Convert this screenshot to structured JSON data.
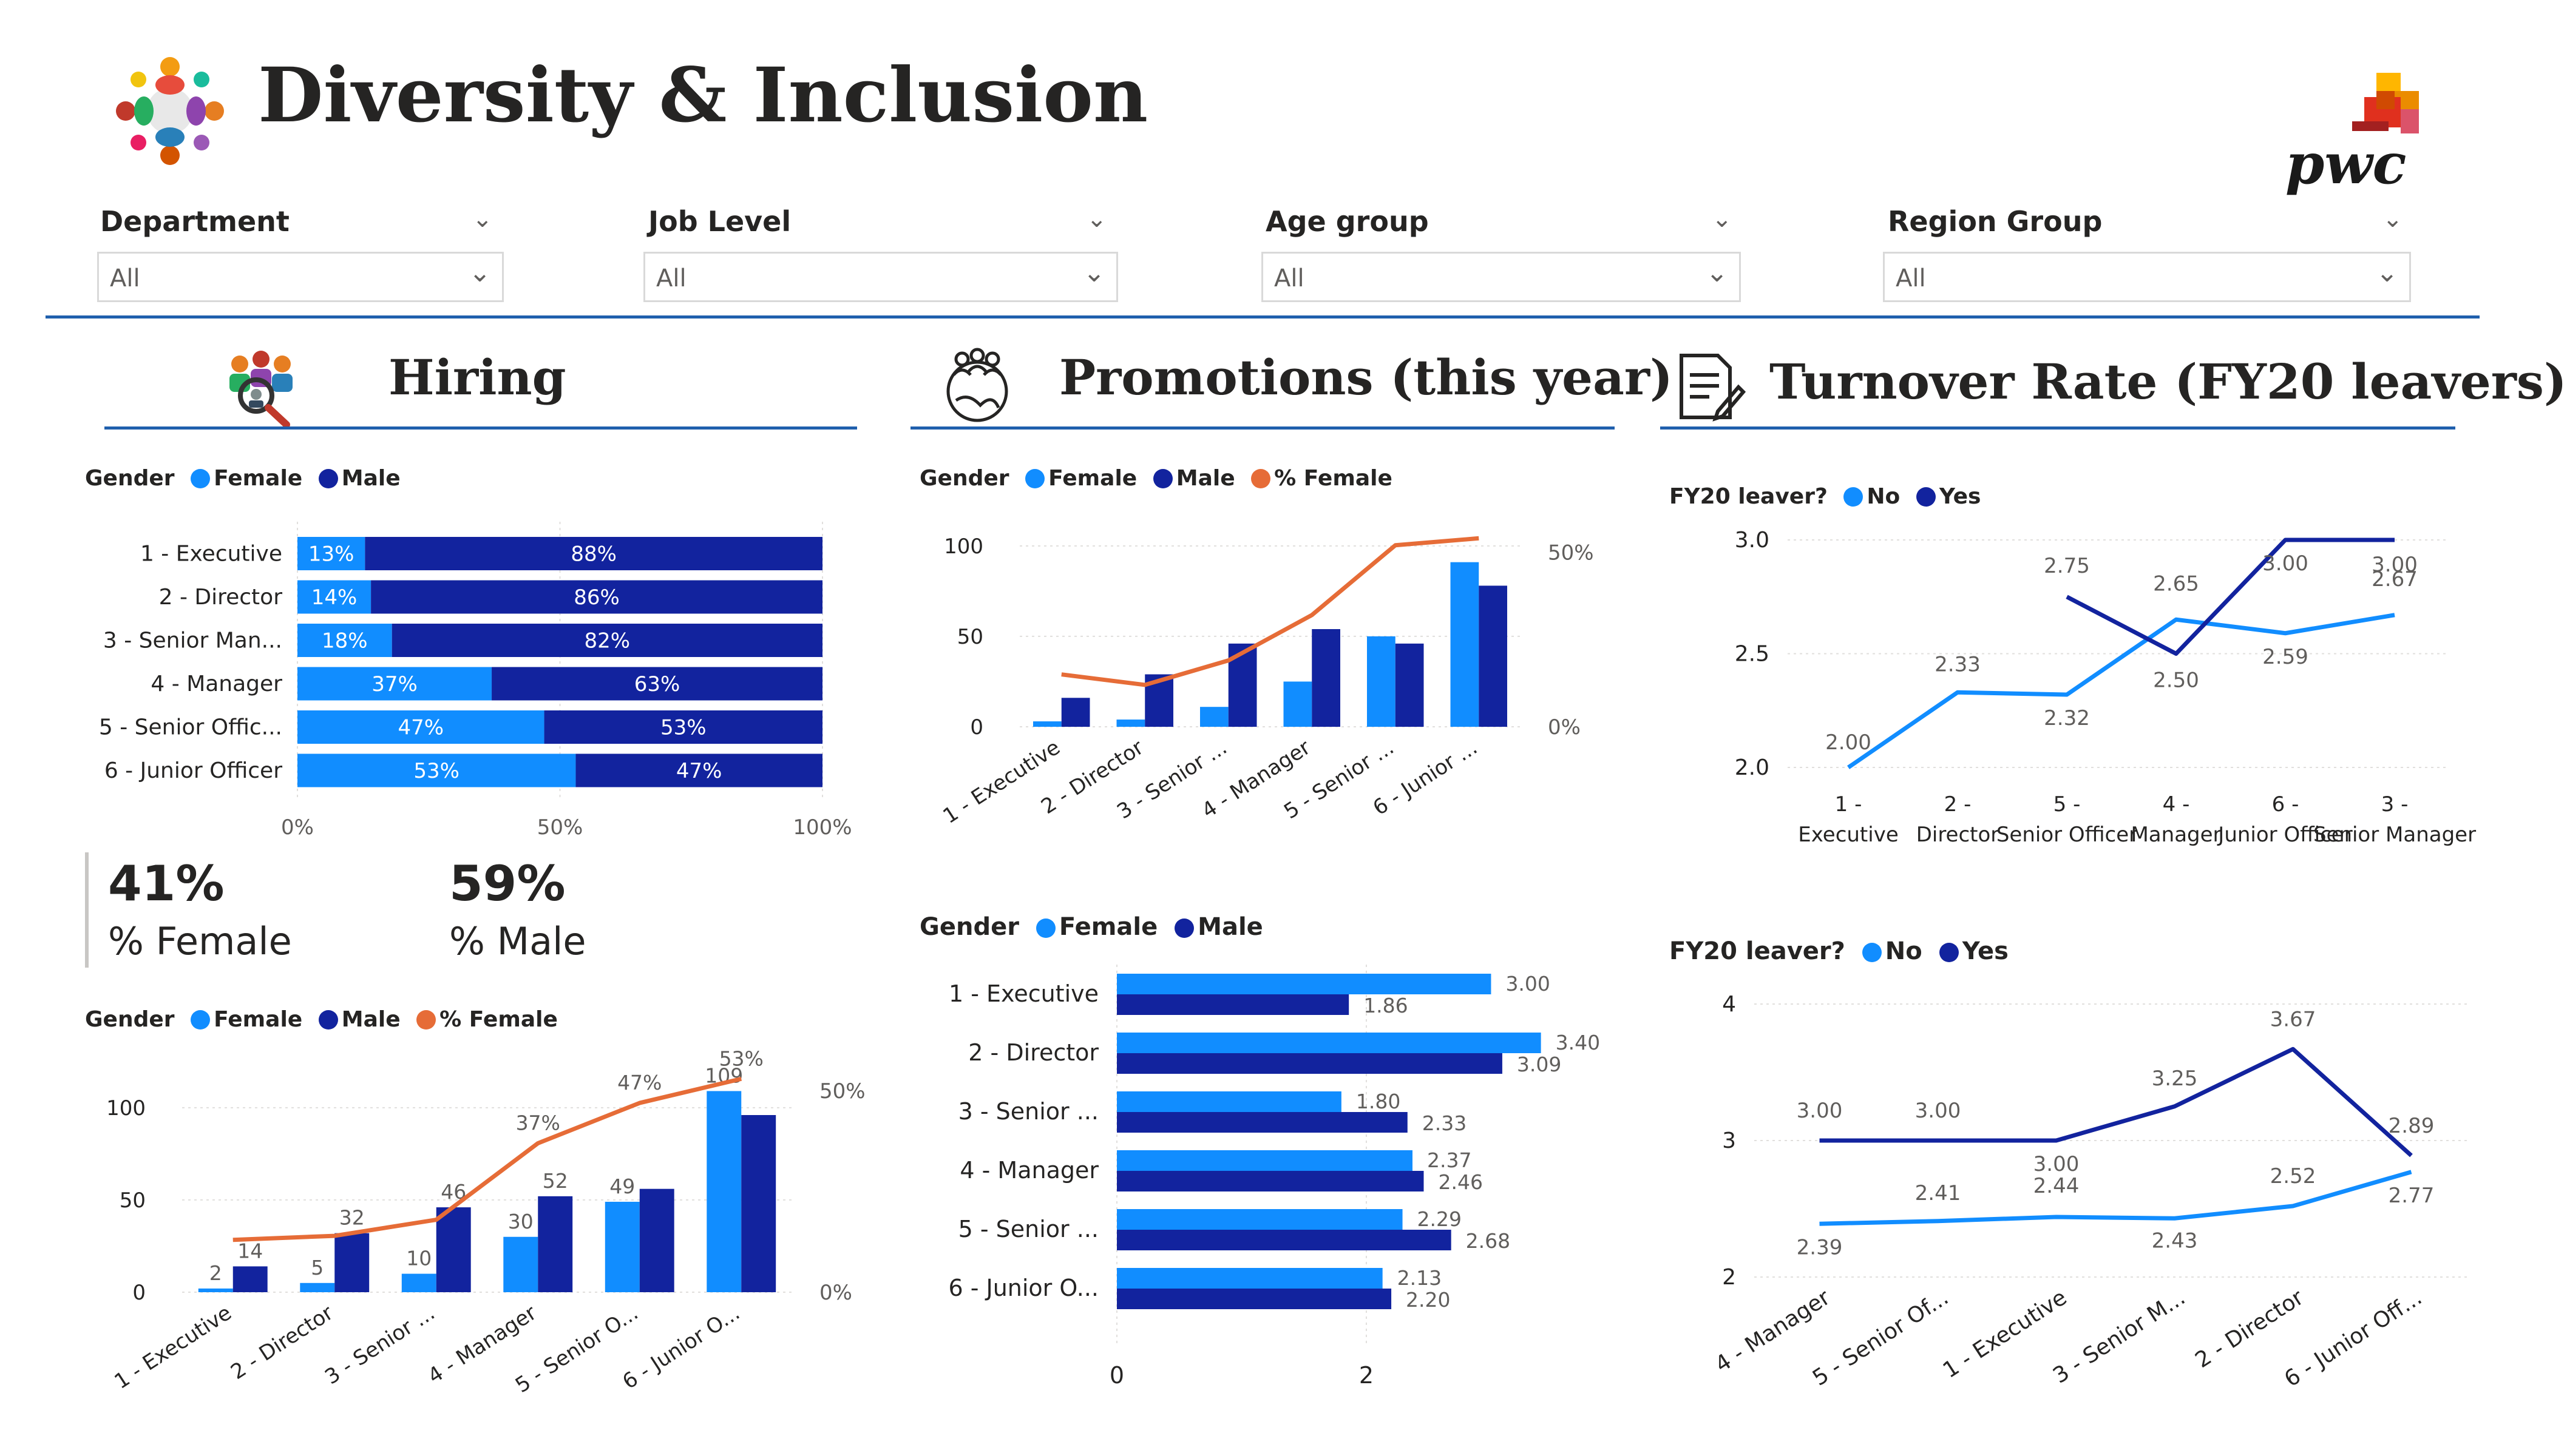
{
  "header": {
    "title": "Diversity & Inclusion",
    "brand": "pwc"
  },
  "colors": {
    "female": "#118dff",
    "male": "#12239e",
    "pct_female": "#e66c37",
    "no": "#118dff",
    "yes": "#12239e",
    "divider": "#1f5fad"
  },
  "slicers": [
    {
      "label": "Department",
      "value": "All"
    },
    {
      "label": "Job Level",
      "value": "All"
    },
    {
      "label": "Age group",
      "value": "All"
    },
    {
      "label": "Region Group",
      "value": "All"
    }
  ],
  "sections": {
    "hiring": "Hiring",
    "promotions": "Promotions (this year)",
    "turnover": "Turnover Rate (FY20 leavers)"
  },
  "legends": {
    "gender_fm": {
      "title": "Gender",
      "items": [
        "Female",
        "Male"
      ]
    },
    "gender_fm_pct": {
      "title": "Gender",
      "items": [
        "Female",
        "Male",
        "% Female"
      ]
    },
    "leaver": {
      "title": "FY20 leaver?",
      "items": [
        "No",
        "Yes"
      ]
    }
  },
  "kpis": {
    "female_value": "41%",
    "female_label": "% Female",
    "male_value": "59%",
    "male_label": "% Male"
  },
  "chart_data": [
    {
      "id": "hiring_stacked",
      "type": "bar",
      "orientation": "horizontal-100%-stacked",
      "categories": [
        "1 - Executive",
        "2 - Director",
        "3 - Senior Man...",
        "4 - Manager",
        "5 - Senior Offic...",
        "6 - Junior Officer"
      ],
      "series": [
        {
          "name": "Female",
          "values": [
            13,
            14,
            18,
            37,
            47,
            53
          ],
          "labels": [
            "13%",
            "14%",
            "18%",
            "37%",
            "47%",
            "53%"
          ]
        },
        {
          "name": "Male",
          "values": [
            88,
            86,
            82,
            63,
            53,
            47
          ],
          "labels": [
            "88%",
            "86%",
            "82%",
            "63%",
            "53%",
            "47%"
          ]
        }
      ],
      "xticks": [
        "0%",
        "50%",
        "100%"
      ]
    },
    {
      "id": "hiring_combo",
      "type": "bar",
      "categories": [
        "1 - Executive",
        "2 - Director",
        "3 - Senior ...",
        "4 - Manager",
        "5 - Senior O...",
        "6 - Junior O..."
      ],
      "series": [
        {
          "name": "Female",
          "values": [
            2,
            5,
            10,
            30,
            49,
            109
          ],
          "labels": [
            "2",
            "5",
            "10",
            "30",
            "49",
            "109"
          ]
        },
        {
          "name": "Male",
          "values": [
            14,
            32,
            46,
            52,
            56,
            96
          ],
          "labels": [
            "14",
            "32",
            "46",
            "52",
            "",
            ""
          ]
        },
        {
          "name": "% Female",
          "values": [
            13,
            14,
            18,
            37,
            47,
            53
          ],
          "axis": "right",
          "labels": [
            "",
            "",
            "",
            "37%",
            "47%",
            "53%"
          ]
        }
      ],
      "yticks": [
        "0",
        "50",
        "100"
      ],
      "ylim": [
        0,
        120
      ],
      "y2ticks": [
        "0%",
        "50%"
      ],
      "y2lim": [
        0,
        55
      ]
    },
    {
      "id": "promotions_combo",
      "type": "bar",
      "categories": [
        "1 - Executive",
        "2 - Director",
        "3 - Senior ...",
        "4 - Manager",
        "5 - Senior ...",
        "6 - Junior ..."
      ],
      "series": [
        {
          "name": "Female",
          "values": [
            3,
            4,
            11,
            25,
            50,
            91
          ]
        },
        {
          "name": "Male",
          "values": [
            16,
            29,
            46,
            54,
            46,
            78
          ]
        },
        {
          "name": "% Female",
          "values": [
            15,
            12,
            19,
            32,
            52,
            54
          ],
          "axis": "right"
        }
      ],
      "yticks": [
        "0",
        "50",
        "100"
      ],
      "ylim": [
        0,
        110
      ],
      "y2ticks": [
        "0%",
        "50%"
      ],
      "y2lim": [
        0,
        57
      ]
    },
    {
      "id": "promotions_hbar",
      "type": "bar",
      "orientation": "horizontal-clustered",
      "categories": [
        "1 - Executive",
        "2 - Director",
        "3 - Senior ...",
        "4 - Manager",
        "5 - Senior ...",
        "6 - Junior O..."
      ],
      "series": [
        {
          "name": "Female",
          "values": [
            3.0,
            3.4,
            1.8,
            2.37,
            2.29,
            2.13
          ],
          "labels": [
            "3.00",
            "3.40",
            "1.80",
            "2.37",
            "2.29",
            "2.13"
          ]
        },
        {
          "name": "Male",
          "values": [
            1.86,
            3.09,
            2.33,
            2.46,
            2.68,
            2.2
          ],
          "labels": [
            "1.86",
            "3.09",
            "2.33",
            "2.46",
            "2.68",
            "2.20"
          ]
        }
      ],
      "xticks": [
        "0",
        "2"
      ],
      "xlim": [
        0,
        3.65
      ]
    },
    {
      "id": "turnover_line_1",
      "type": "line",
      "categories": [
        "1 - Executive",
        "2 - Director",
        "5 - Senior Officer",
        "4 - Manager",
        "6 - Junior Officer",
        "3 - Senior Manager"
      ],
      "series": [
        {
          "name": "No",
          "values": [
            2.0,
            2.33,
            2.32,
            2.65,
            2.59,
            2.67
          ],
          "labels": [
            "2.00",
            "2.33",
            "2.32",
            "2.65",
            "2.59",
            "2.67"
          ]
        },
        {
          "name": "Yes",
          "values": [
            null,
            null,
            2.75,
            2.5,
            3.0,
            3.0
          ],
          "labels": [
            "",
            "",
            "2.75",
            "2.50",
            "3.00",
            "3.00"
          ]
        }
      ],
      "yticks": [
        "2.0",
        "2.5",
        "3.0"
      ],
      "ylim": [
        2.0,
        3.0
      ]
    },
    {
      "id": "turnover_line_2",
      "type": "line",
      "categories": [
        "4 - Manager",
        "5 - Senior Of...",
        "1 - Executive",
        "3 - Senior M...",
        "2 - Director",
        "6 - Junior Off..."
      ],
      "series": [
        {
          "name": "No",
          "values": [
            2.39,
            2.41,
            2.44,
            2.43,
            2.52,
            2.77
          ],
          "labels": [
            "2.39",
            "2.41",
            "2.44",
            "2.43",
            "2.52",
            "2.77"
          ]
        },
        {
          "name": "Yes",
          "values": [
            3.0,
            3.0,
            3.0,
            3.25,
            3.67,
            2.89
          ],
          "labels": [
            "3.00",
            "3.00",
            "3.00",
            "3.25",
            "3.67",
            "2.89"
          ]
        }
      ],
      "yticks": [
        "2",
        "3",
        "4"
      ],
      "ylim": [
        2,
        4
      ]
    }
  ]
}
